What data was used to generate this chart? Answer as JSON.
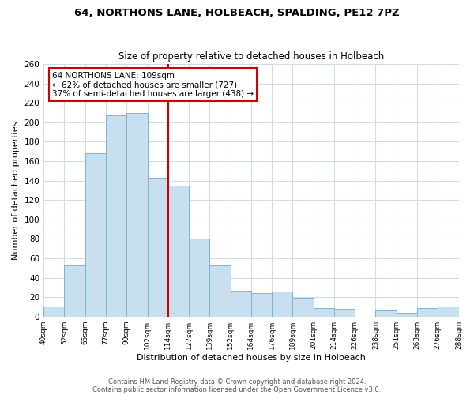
{
  "title": "64, NORTHONS LANE, HOLBEACH, SPALDING, PE12 7PZ",
  "subtitle": "Size of property relative to detached houses in Holbeach",
  "xlabel": "Distribution of detached houses by size in Holbeach",
  "ylabel": "Number of detached properties",
  "bar_labels": [
    "40sqm",
    "52sqm",
    "65sqm",
    "77sqm",
    "90sqm",
    "102sqm",
    "114sqm",
    "127sqm",
    "139sqm",
    "152sqm",
    "164sqm",
    "176sqm",
    "189sqm",
    "201sqm",
    "214sqm",
    "226sqm",
    "238sqm",
    "251sqm",
    "263sqm",
    "276sqm",
    "288sqm"
  ],
  "bar_values": [
    10,
    53,
    168,
    207,
    210,
    143,
    135,
    80,
    53,
    27,
    24,
    26,
    19,
    9,
    8,
    0,
    6,
    4,
    9,
    10
  ],
  "bar_color": "#c8dff0",
  "bar_edge_color": "#7fb3d3",
  "vline_color": "#cc0000",
  "annotation_title": "64 NORTHONS LANE: 109sqm",
  "annotation_line1": "← 62% of detached houses are smaller (727)",
  "annotation_line2": "37% of semi-detached houses are larger (438) →",
  "annotation_box_color": "#ffffff",
  "annotation_box_edge": "#cc0000",
  "ylim": [
    0,
    260
  ],
  "yticks": [
    0,
    20,
    40,
    60,
    80,
    100,
    120,
    140,
    160,
    180,
    200,
    220,
    240,
    260
  ],
  "footer1": "Contains HM Land Registry data © Crown copyright and database right 2024.",
  "footer2": "Contains public sector information licensed under the Open Government Licence v3.0.",
  "bg_color": "#ffffff",
  "plot_bg_color": "#ffffff",
  "grid_color": "#d0dce8"
}
